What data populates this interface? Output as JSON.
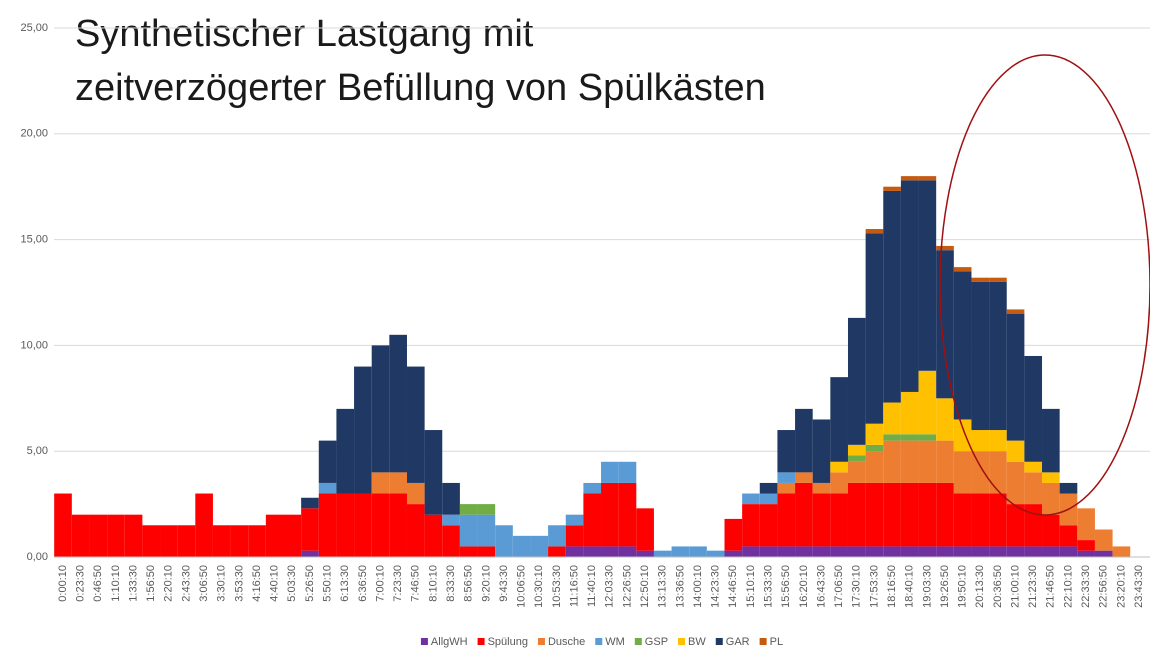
{
  "chart_data": {
    "type": "stacked_bar",
    "title": [
      "Synthetischer Lastgang mit",
      "zeitverzögerter Befüllung von Spülkästen"
    ],
    "categories": [
      "0:00:10",
      "0:23:30",
      "0:46:50",
      "1:10:10",
      "1:33:30",
      "1:56:50",
      "2:20:10",
      "2:43:30",
      "3:06:50",
      "3:30:10",
      "3:53:30",
      "4:16:50",
      "4:40:10",
      "5:03:30",
      "5:26:50",
      "5:50:10",
      "6:13:30",
      "6:36:50",
      "7:00:10",
      "7:23:30",
      "7:46:50",
      "8:10:10",
      "8:33:30",
      "8:56:50",
      "9:20:10",
      "9:43:30",
      "10:06:50",
      "10:30:10",
      "10:53:30",
      "11:16:50",
      "11:40:10",
      "12:03:30",
      "12:26:50",
      "12:50:10",
      "13:13:30",
      "13:36:50",
      "14:00:10",
      "14:23:30",
      "14:46:50",
      "15:10:10",
      "15:33:30",
      "15:56:50",
      "16:20:10",
      "16:43:30",
      "17:06:50",
      "17:30:10",
      "17:53:30",
      "18:16:50",
      "18:40:10",
      "19:03:30",
      "19:26:50",
      "19:50:10",
      "20:13:30",
      "20:36:50",
      "21:00:10",
      "21:23:30",
      "21:46:50",
      "22:10:10",
      "22:33:30",
      "22:56:50",
      "23:20:10",
      "23:43:30"
    ],
    "series": [
      {
        "name": "AllgWH",
        "color": "#7030a0",
        "values": [
          0,
          0,
          0,
          0,
          0,
          0,
          0,
          0,
          0,
          0,
          0,
          0,
          0,
          0,
          0.3,
          0,
          0,
          0,
          0,
          0,
          0,
          0,
          0,
          0,
          0,
          0,
          0,
          0,
          0,
          0.5,
          0.5,
          0.5,
          0.5,
          0.3,
          0,
          0,
          0,
          0,
          0.3,
          0.5,
          0.5,
          0.5,
          0.5,
          0.5,
          0.5,
          0.5,
          0.5,
          0.5,
          0.5,
          0.5,
          0.5,
          0.5,
          0.5,
          0.5,
          0.5,
          0.5,
          0.5,
          0.5,
          0.3,
          0.3,
          0,
          0
        ]
      },
      {
        "name": "Spülung",
        "color": "#ff0000",
        "values": [
          3,
          2,
          2,
          2,
          2,
          1.5,
          1.5,
          1.5,
          3,
          1.5,
          1.5,
          1.5,
          2,
          2,
          2,
          3,
          3,
          3,
          3,
          3,
          2.5,
          2,
          1.5,
          0.5,
          0.5,
          0,
          0,
          0,
          0.5,
          1,
          2.5,
          3,
          3,
          2,
          0,
          0,
          0,
          0,
          1.5,
          2,
          2,
          2.5,
          3,
          2.5,
          2.5,
          3,
          3,
          3,
          3,
          3,
          3,
          2.5,
          2.5,
          2.5,
          2,
          2,
          1.5,
          1,
          0.5,
          0,
          0,
          0
        ]
      },
      {
        "name": "Dusche",
        "color": "#ed7d31",
        "values": [
          0,
          0,
          0,
          0,
          0,
          0,
          0,
          0,
          0,
          0,
          0,
          0,
          0,
          0,
          0,
          0,
          0,
          0,
          1,
          1,
          1,
          0,
          0,
          0,
          0,
          0,
          0,
          0,
          0,
          0,
          0,
          0,
          0,
          0,
          0,
          0,
          0,
          0,
          0,
          0,
          0,
          0.5,
          0.5,
          0.5,
          1,
          1,
          1.5,
          2,
          2,
          2,
          2,
          2,
          2,
          2,
          2,
          1.5,
          1.5,
          1.5,
          1.5,
          1,
          0.5,
          0
        ]
      },
      {
        "name": "WM",
        "color": "#5b9bd5",
        "values": [
          0,
          0,
          0,
          0,
          0,
          0,
          0,
          0,
          0,
          0,
          0,
          0,
          0,
          0,
          0,
          0.5,
          0,
          0,
          0,
          0,
          0,
          0,
          0.5,
          1.5,
          1.5,
          1.5,
          1,
          1,
          1,
          0.5,
          0.5,
          1,
          1,
          0,
          0.3,
          0.5,
          0.5,
          0.3,
          0,
          0.5,
          0.5,
          0.5,
          0,
          0,
          0,
          0,
          0,
          0,
          0,
          0,
          0,
          0,
          0,
          0,
          0,
          0,
          0,
          0,
          0,
          0,
          0,
          0
        ]
      },
      {
        "name": "GSP",
        "color": "#70ad47",
        "values": [
          0,
          0,
          0,
          0,
          0,
          0,
          0,
          0,
          0,
          0,
          0,
          0,
          0,
          0,
          0,
          0,
          0,
          0,
          0,
          0,
          0,
          0,
          0,
          0.5,
          0.5,
          0,
          0,
          0,
          0,
          0,
          0,
          0,
          0,
          0,
          0,
          0,
          0,
          0,
          0,
          0,
          0,
          0,
          0,
          0,
          0,
          0.3,
          0.3,
          0.3,
          0.3,
          0.3,
          0,
          0,
          0,
          0,
          0,
          0,
          0,
          0,
          0,
          0,
          0,
          0
        ]
      },
      {
        "name": "BW",
        "color": "#ffc000",
        "values": [
          0,
          0,
          0,
          0,
          0,
          0,
          0,
          0,
          0,
          0,
          0,
          0,
          0,
          0,
          0,
          0,
          0,
          0,
          0,
          0,
          0,
          0,
          0,
          0,
          0,
          0,
          0,
          0,
          0,
          0,
          0,
          0,
          0,
          0,
          0,
          0,
          0,
          0,
          0,
          0,
          0,
          0,
          0,
          0,
          0.5,
          0.5,
          1,
          1.5,
          2,
          3,
          2,
          1.5,
          1,
          1,
          1,
          0.5,
          0.5,
          0,
          0,
          0,
          0,
          0
        ]
      },
      {
        "name": "GAR",
        "color": "#1f3864",
        "values": [
          0,
          0,
          0,
          0,
          0,
          0,
          0,
          0,
          0,
          0,
          0,
          0,
          0,
          0,
          0.5,
          2,
          4,
          6,
          6,
          6.5,
          5.5,
          4,
          1.5,
          0,
          0,
          0,
          0,
          0,
          0,
          0,
          0,
          0,
          0,
          0,
          0,
          0,
          0,
          0,
          0,
          0,
          0.5,
          2,
          3,
          3,
          4,
          6,
          9,
          10,
          10,
          9,
          7,
          7,
          7,
          7,
          6,
          5,
          3,
          0.5,
          0,
          0,
          0,
          0
        ]
      },
      {
        "name": "PL",
        "color": "#c55a11",
        "values": [
          0,
          0,
          0,
          0,
          0,
          0,
          0,
          0,
          0,
          0,
          0,
          0,
          0,
          0,
          0,
          0,
          0,
          0,
          0,
          0,
          0,
          0,
          0,
          0,
          0,
          0,
          0,
          0,
          0,
          0,
          0,
          0,
          0,
          0,
          0,
          0,
          0,
          0,
          0,
          0,
          0,
          0,
          0,
          0,
          0,
          0,
          0.2,
          0.2,
          0.2,
          0.2,
          0.2,
          0.2,
          0.2,
          0.2,
          0.2,
          0,
          0,
          0,
          0,
          0,
          0,
          0
        ]
      }
    ],
    "ylim": [
      0,
      25
    ],
    "yticks": [
      {
        "value": 0,
        "label": "0,00"
      },
      {
        "value": 5,
        "label": "5,00"
      },
      {
        "value": 10,
        "label": "10,00"
      },
      {
        "value": 15,
        "label": "15,00"
      },
      {
        "value": 20,
        "label": "20,00"
      },
      {
        "value": 25,
        "label": "25,00"
      }
    ],
    "grid": true,
    "legend": "bottom"
  }
}
